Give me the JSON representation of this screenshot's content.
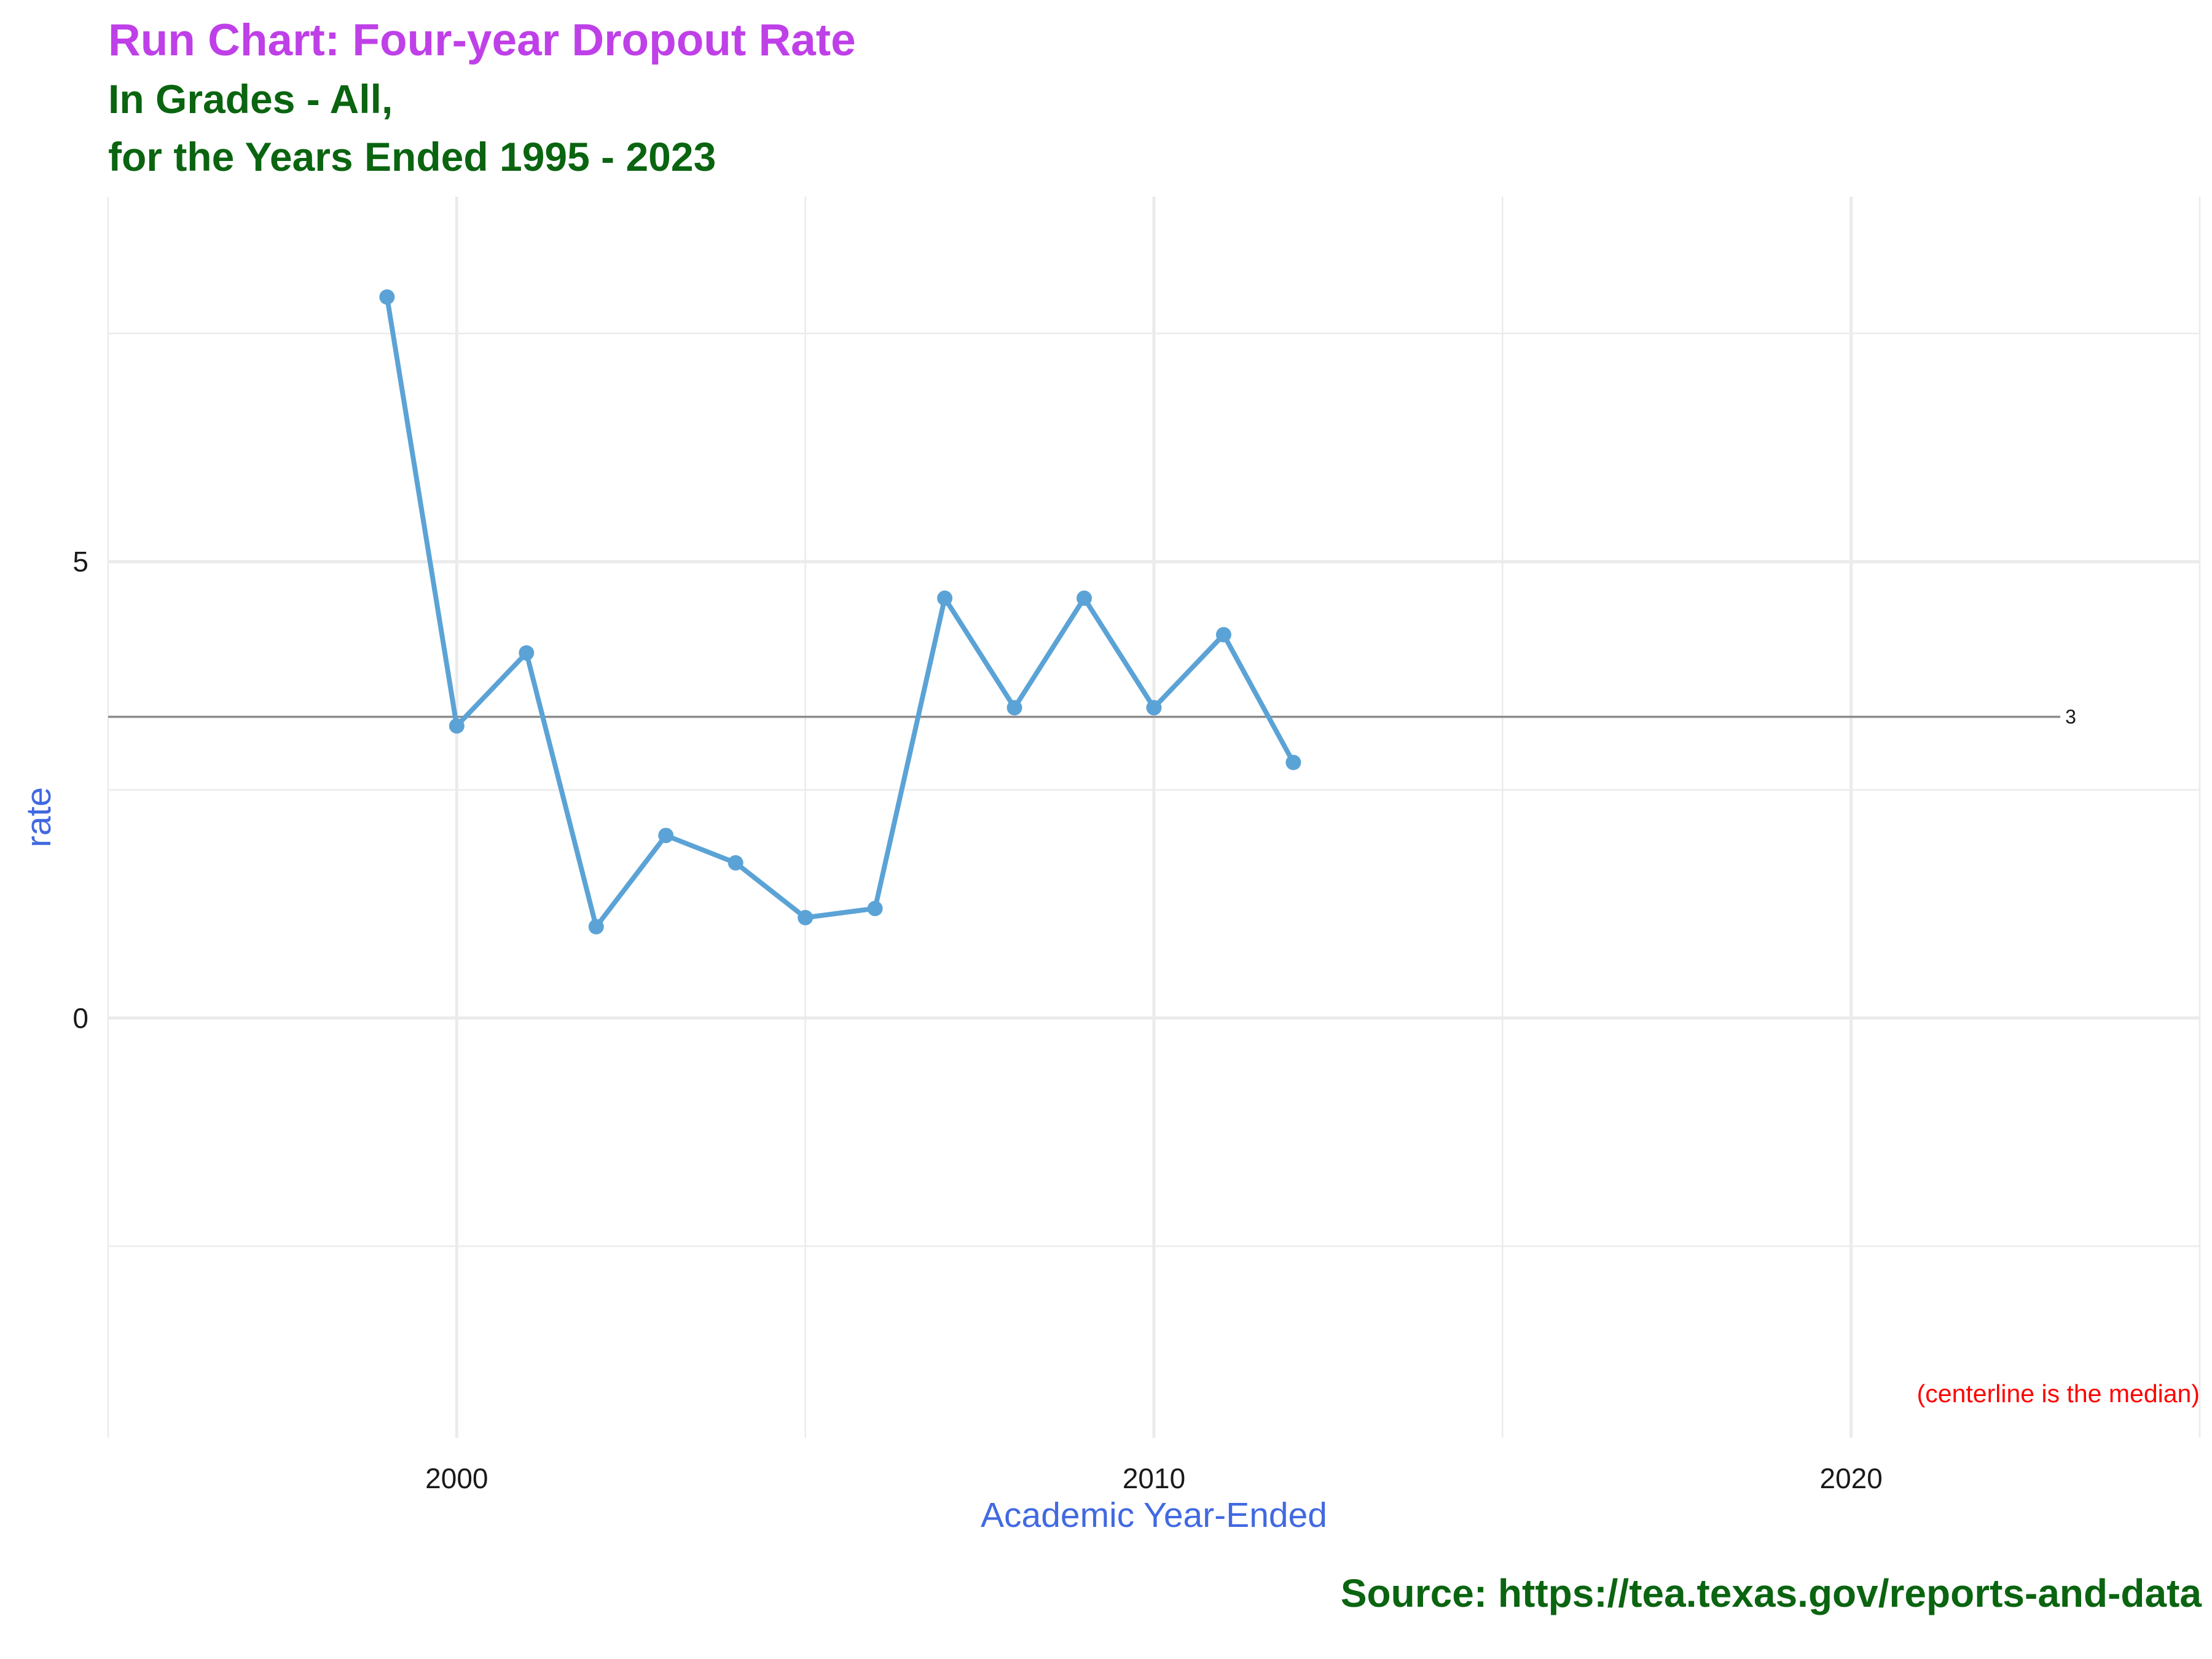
{
  "header": {
    "title": "Run Chart: Four-year Dropout Rate",
    "subtitle_line1": "In Grades - All,",
    "subtitle_line2": "for the Years Ended 1995 - 2023"
  },
  "caption": "Source:  https://tea.texas.gov/reports-and-data",
  "colors": {
    "title": "#BF40E8",
    "subtitle": "#0A6410",
    "axis_title": "#4169E1",
    "series": "#5BA3D6",
    "centerline": "#8C8C8C",
    "note": "#FF0000",
    "grid": "#EBEBEB"
  },
  "chart_data": {
    "type": "line",
    "xlabel": "Academic Year-Ended",
    "ylabel": "rate",
    "xlim": [
      1995,
      2025
    ],
    "ylim": [
      -4.6,
      9.0
    ],
    "x_ticks": [
      2000,
      2010,
      2020
    ],
    "y_ticks": [
      0,
      5
    ],
    "grid": true,
    "series": [
      {
        "x": [
          1999,
          2000,
          2001,
          2002,
          2003,
          2004,
          2005,
          2006,
          2007,
          2008,
          2009,
          2010,
          2011,
          2012
        ],
        "values": [
          7.9,
          3.2,
          4.0,
          1.0,
          2.0,
          1.7,
          1.1,
          1.2,
          4.6,
          3.4,
          4.6,
          3.4,
          4.2,
          2.8
        ]
      }
    ],
    "centerline": {
      "value": 3.3,
      "label": "3",
      "x_start": 1995,
      "x_end": 2023
    },
    "annotation": "(centerline is the median)"
  }
}
